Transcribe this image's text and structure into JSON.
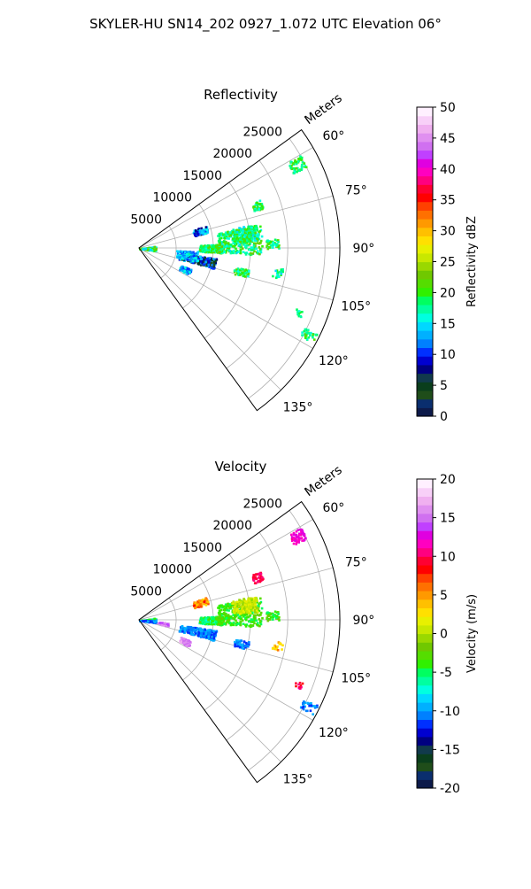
{
  "figure": {
    "title": "SKYLER-HU  SN14_202  0927_1.072 UTC Elevation 06°"
  },
  "chart_data": [
    {
      "type": "polar-sector",
      "title": "Reflectivity",
      "range_label": "Meters",
      "range_ticks": [
        5000,
        10000,
        15000,
        20000,
        25000
      ],
      "range_max": 27000,
      "azimuth_range": [
        54,
        144
      ],
      "azimuth_ticks": [
        "60°",
        "75°",
        "90°",
        "105°",
        "120°",
        "135°"
      ],
      "azimuth_tick_values": [
        60,
        75,
        90,
        105,
        120,
        135
      ],
      "grid": true,
      "colorbar": {
        "label": "Reflectivity dBZ",
        "min": 0,
        "max": 50,
        "ticks": [
          0,
          5,
          10,
          15,
          20,
          25,
          30,
          35,
          40,
          45,
          50
        ],
        "colors": [
          "#0d1a4a",
          "#0a2e6e",
          "#1f4d1a",
          "#0a3e1c",
          "#113a4c",
          "#000080",
          "#0000d0",
          "#0030ff",
          "#0080ff",
          "#00b0ff",
          "#00d8ff",
          "#00ffe0",
          "#00ffa0",
          "#00ff60",
          "#30f000",
          "#55dd00",
          "#70c800",
          "#9ad800",
          "#c8e800",
          "#e8f000",
          "#ffe000",
          "#ffc000",
          "#ff9900",
          "#ff7000",
          "#ff4000",
          "#ff0000",
          "#ff0033",
          "#ff0080",
          "#ff00c0",
          "#e000e0",
          "#c040ff",
          "#d070f0",
          "#e090f0",
          "#f0b0f0",
          "#f8d0f8",
          "#fff0ff"
        ]
      },
      "echoes": [
        {
          "az": 87,
          "r0": 0,
          "r1": 2200,
          "w": 5,
          "n": 90,
          "vmin": 14,
          "vmax": 24
        },
        {
          "az": 94,
          "r0": 0,
          "r1": 2200,
          "w": 5,
          "n": 80,
          "vmin": 14,
          "vmax": 24
        },
        {
          "az": 90,
          "r0": 8000,
          "r1": 11000,
          "w": 3,
          "n": 180,
          "vmin": 16,
          "vmax": 22
        },
        {
          "az": 86,
          "r0": 10500,
          "r1": 16500,
          "w": 7,
          "n": 320,
          "vmin": 15,
          "vmax": 23
        },
        {
          "az": 82,
          "r0": 12500,
          "r1": 16000,
          "w": 4,
          "n": 160,
          "vmin": 14,
          "vmax": 22
        },
        {
          "az": 88,
          "r0": 17000,
          "r1": 18700,
          "w": 2,
          "n": 40,
          "vmin": 16,
          "vmax": 22
        },
        {
          "az": 101,
          "r0": 5500,
          "r1": 10500,
          "w": 4,
          "n": 200,
          "vmin": 3,
          "vmax": 14
        },
        {
          "az": 98,
          "r0": 5000,
          "r1": 8000,
          "w": 5,
          "n": 120,
          "vmin": 10,
          "vmax": 17
        },
        {
          "az": 115,
          "r0": 6000,
          "r1": 7500,
          "w": 3,
          "n": 60,
          "vmin": 10,
          "vmax": 17
        },
        {
          "az": 74,
          "r0": 7500,
          "r1": 9500,
          "w": 3,
          "n": 60,
          "vmin": 6,
          "vmax": 16
        },
        {
          "az": 103,
          "r0": 13000,
          "r1": 15000,
          "w": 2,
          "n": 50,
          "vmin": 16,
          "vmax": 22
        },
        {
          "az": 62,
          "r0": 23000,
          "r1": 25000,
          "w": 2,
          "n": 60,
          "vmin": 16,
          "vmax": 22
        },
        {
          "az": 70,
          "r0": 16200,
          "r1": 17500,
          "w": 2,
          "n": 40,
          "vmin": 16,
          "vmax": 22
        },
        {
          "az": 117,
          "r0": 24500,
          "r1": 26500,
          "w": 1.5,
          "n": 30,
          "vmin": 16,
          "vmax": 22
        },
        {
          "az": 100,
          "r0": 18200,
          "r1": 19500,
          "w": 2,
          "n": 20,
          "vmin": 14,
          "vmax": 20
        },
        {
          "az": 112,
          "r0": 22500,
          "r1": 23500,
          "w": 1,
          "n": 12,
          "vmin": 15,
          "vmax": 20
        }
      ]
    },
    {
      "type": "polar-sector",
      "title": "Velocity",
      "range_label": "Meters",
      "range_ticks": [
        5000,
        10000,
        15000,
        20000,
        25000
      ],
      "range_max": 27000,
      "azimuth_range": [
        54,
        144
      ],
      "azimuth_ticks": [
        "60°",
        "75°",
        "90°",
        "105°",
        "120°",
        "135°"
      ],
      "azimuth_tick_values": [
        60,
        75,
        90,
        105,
        120,
        135
      ],
      "grid": true,
      "colorbar": {
        "label": "Velocity (m/s)",
        "min": -20,
        "max": 20,
        "ticks": [
          -20,
          -15,
          -10,
          -5,
          0,
          5,
          10,
          15,
          20
        ],
        "colors": [
          "#0d1a4a",
          "#0a2e6e",
          "#1f4d1a",
          "#0a3e1c",
          "#113a4c",
          "#000080",
          "#0000d0",
          "#0030ff",
          "#0080ff",
          "#00b0ff",
          "#00d8ff",
          "#00ffe0",
          "#00ffa0",
          "#00ff60",
          "#30f000",
          "#55dd00",
          "#70c800",
          "#9ad800",
          "#c8e800",
          "#e8f000",
          "#ffe000",
          "#ffc000",
          "#ff9900",
          "#ff7000",
          "#ff4000",
          "#ff0000",
          "#ff0033",
          "#ff0080",
          "#ff00c0",
          "#e000e0",
          "#c040ff",
          "#d070f0",
          "#e090f0",
          "#f0b0f0",
          "#f8d0f8",
          "#fff0ff"
        ]
      },
      "echoes": [
        {
          "az": 87,
          "r0": 0,
          "r1": 2200,
          "w": 5,
          "n": 90,
          "vmin": -6,
          "vmax": -3
        },
        {
          "az": 94,
          "r0": 0,
          "r1": 2200,
          "w": 5,
          "n": 80,
          "vmin": -12,
          "vmax": -9
        },
        {
          "az": 90,
          "r0": 8000,
          "r1": 11000,
          "w": 3,
          "n": 180,
          "vmin": -7,
          "vmax": -3
        },
        {
          "az": 86,
          "r0": 10500,
          "r1": 16500,
          "w": 7,
          "n": 320,
          "vmin": -5,
          "vmax": -2
        },
        {
          "az": 82,
          "r0": 12500,
          "r1": 16000,
          "w": 4,
          "n": 160,
          "vmin": -1,
          "vmax": 2
        },
        {
          "az": 88,
          "r0": 17000,
          "r1": 18700,
          "w": 2,
          "n": 40,
          "vmin": -5,
          "vmax": -2
        },
        {
          "az": 101,
          "r0": 5500,
          "r1": 10500,
          "w": 4,
          "n": 200,
          "vmin": -12,
          "vmax": -9
        },
        {
          "az": 98,
          "r0": 2500,
          "r1": 4000,
          "w": 3,
          "n": 40,
          "vmin": 14,
          "vmax": 17
        },
        {
          "az": 115,
          "r0": 6000,
          "r1": 7500,
          "w": 3,
          "n": 60,
          "vmin": 14,
          "vmax": 17
        },
        {
          "az": 74,
          "r0": 7500,
          "r1": 9500,
          "w": 3,
          "n": 60,
          "vmin": 3,
          "vmax": 8
        },
        {
          "az": 103,
          "r0": 13000,
          "r1": 15000,
          "w": 2,
          "n": 50,
          "vmin": -12,
          "vmax": -9
        },
        {
          "az": 62,
          "r0": 23000,
          "r1": 25000,
          "w": 2,
          "n": 60,
          "vmin": 11,
          "vmax": 13
        },
        {
          "az": 70,
          "r0": 16200,
          "r1": 17500,
          "w": 2,
          "n": 40,
          "vmin": 9,
          "vmax": 11
        },
        {
          "az": 117,
          "r0": 24500,
          "r1": 26500,
          "w": 1.5,
          "n": 30,
          "vmin": -12,
          "vmax": -9
        },
        {
          "az": 100,
          "r0": 18200,
          "r1": 19500,
          "w": 2,
          "n": 20,
          "vmin": 2,
          "vmax": 6
        },
        {
          "az": 112,
          "r0": 22500,
          "r1": 23500,
          "w": 1,
          "n": 12,
          "vmin": 8,
          "vmax": 12
        }
      ]
    }
  ]
}
